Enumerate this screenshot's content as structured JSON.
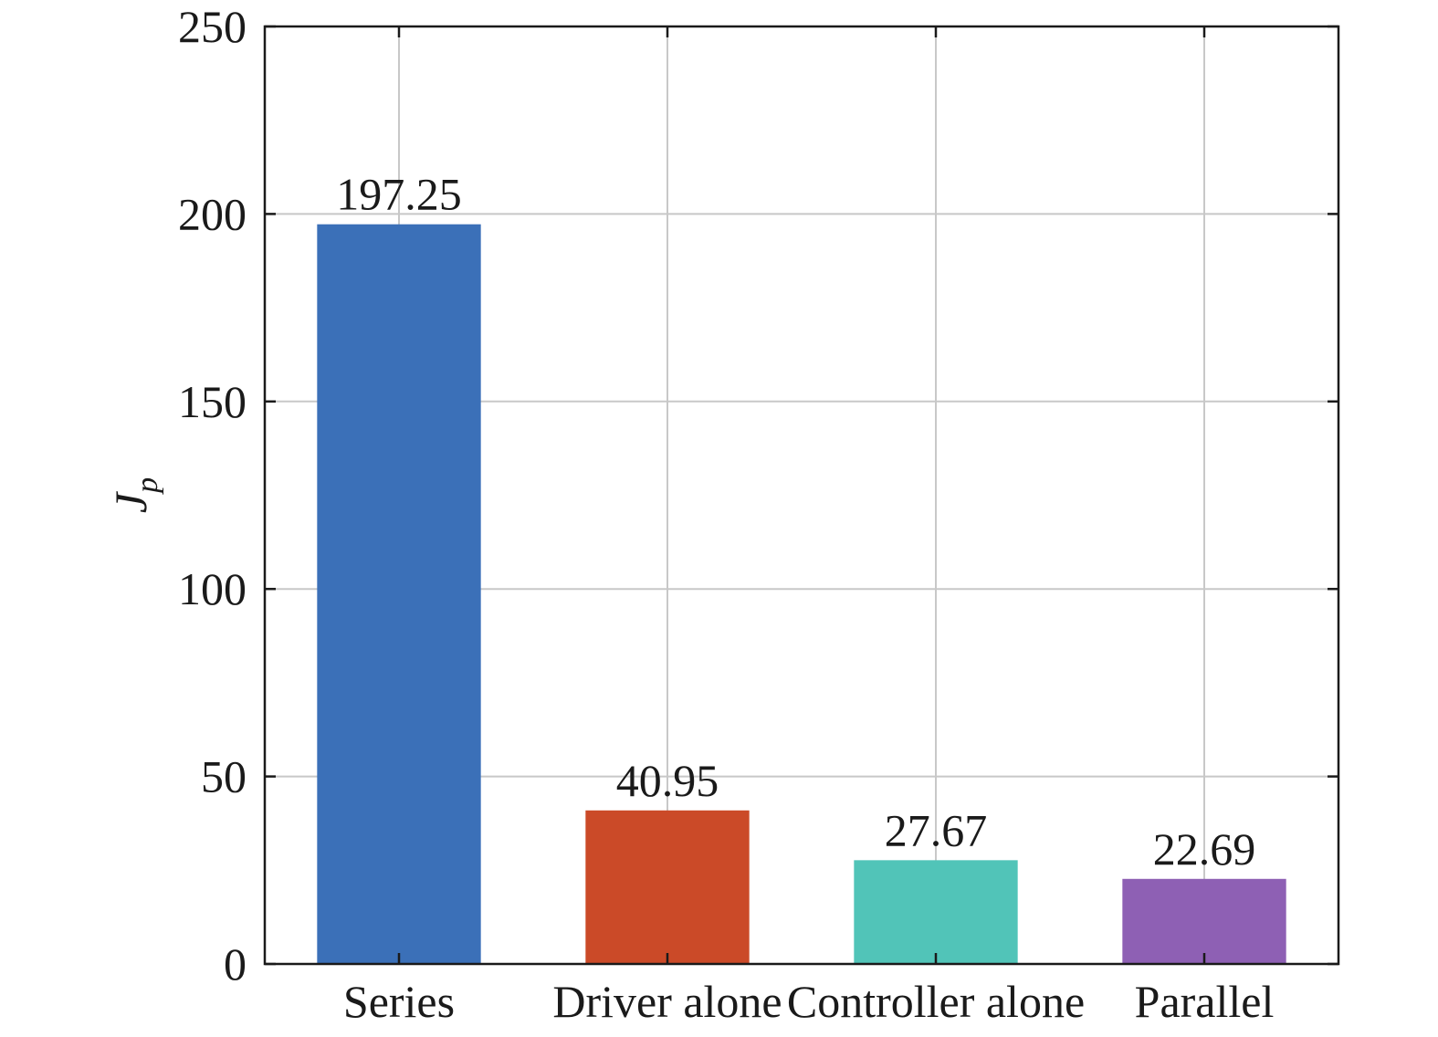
{
  "chart_data": {
    "type": "bar",
    "categories": [
      "Series",
      "Driver alone",
      "Controller alone",
      "Parallel"
    ],
    "values": [
      197.25,
      40.95,
      27.67,
      22.69
    ],
    "data_labels": [
      "197.25",
      "40.95",
      "27.67",
      "22.69"
    ],
    "colors": [
      "#3b70b8",
      "#cb4a28",
      "#51c4b8",
      "#8e60b4"
    ],
    "title": "",
    "xlabel": "",
    "ylabel": "J",
    "ylabel_subscript": "p",
    "ylim": [
      0,
      250
    ],
    "yticks": [
      0,
      50,
      100,
      150,
      200,
      250
    ],
    "ytick_labels": [
      "0",
      "50",
      "100",
      "150",
      "200",
      "250"
    ],
    "grid": true,
    "legend": "none"
  }
}
